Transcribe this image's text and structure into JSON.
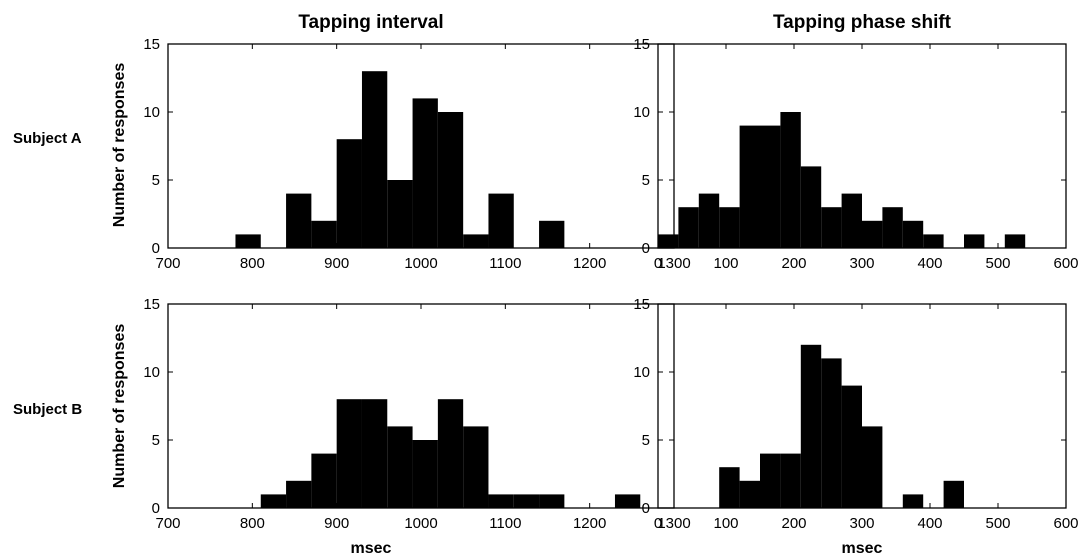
{
  "row_labels": [
    "Subject A",
    "Subject B"
  ],
  "ylabel": "Number of responses",
  "xlabel": "msec",
  "colors": {
    "bar": "#000000",
    "axis": "#000000",
    "background": "#ffffff"
  },
  "chart_data": [
    {
      "type": "bar",
      "title": "Tapping interval",
      "row_label": "Subject A",
      "xlabel": "",
      "ylabel": "Number of responses",
      "xlim": [
        700,
        1300
      ],
      "ylim": [
        0,
        15
      ],
      "xticks": [
        700,
        800,
        900,
        1000,
        1100,
        1200,
        1300
      ],
      "yticks": [
        0,
        5,
        10,
        15
      ],
      "bin_width": 30,
      "bin_starts": [
        780,
        840,
        870,
        900,
        930,
        960,
        990,
        1020,
        1050,
        1080,
        1110,
        1140
      ],
      "values": [
        1,
        4,
        2,
        8,
        13,
        5,
        11,
        10,
        1,
        4,
        0,
        2
      ]
    },
    {
      "type": "bar",
      "title": "Tapping phase shift",
      "row_label": "Subject A",
      "xlabel": "",
      "ylabel": "",
      "xlim": [
        0,
        600
      ],
      "ylim": [
        0,
        15
      ],
      "xticks": [
        0,
        100,
        200,
        300,
        400,
        500,
        600
      ],
      "yticks": [
        0,
        5,
        10,
        15
      ],
      "bin_width": 30,
      "bin_starts": [
        0,
        30,
        60,
        90,
        120,
        150,
        180,
        210,
        240,
        270,
        300,
        330,
        360,
        390,
        420,
        450,
        480,
        510
      ],
      "values": [
        1,
        3,
        4,
        3,
        9,
        9,
        10,
        6,
        3,
        4,
        2,
        3,
        2,
        1,
        0,
        1,
        0,
        1
      ]
    },
    {
      "type": "bar",
      "title": "",
      "row_label": "Subject B",
      "xlabel": "msec",
      "ylabel": "Number of responses",
      "xlim": [
        700,
        1300
      ],
      "ylim": [
        0,
        15
      ],
      "xticks": [
        700,
        800,
        900,
        1000,
        1100,
        1200,
        1300
      ],
      "yticks": [
        0,
        5,
        10,
        15
      ],
      "bin_width": 30,
      "bin_starts": [
        810,
        840,
        870,
        900,
        930,
        960,
        990,
        1020,
        1050,
        1080,
        1110,
        1140,
        1170,
        1200,
        1230
      ],
      "values": [
        1,
        2,
        4,
        8,
        8,
        6,
        5,
        8,
        6,
        1,
        1,
        1,
        0,
        0,
        1
      ]
    },
    {
      "type": "bar",
      "title": "",
      "row_label": "Subject B",
      "xlabel": "msec",
      "ylabel": "",
      "xlim": [
        0,
        600
      ],
      "ylim": [
        0,
        15
      ],
      "xticks": [
        0,
        100,
        200,
        300,
        400,
        500,
        600
      ],
      "yticks": [
        0,
        5,
        10,
        15
      ],
      "bin_width": 30,
      "bin_starts": [
        90,
        120,
        150,
        180,
        210,
        240,
        270,
        300,
        330,
        360,
        390,
        420
      ],
      "values": [
        3,
        2,
        4,
        4,
        12,
        11,
        9,
        6,
        0,
        1,
        0,
        2
      ]
    }
  ]
}
